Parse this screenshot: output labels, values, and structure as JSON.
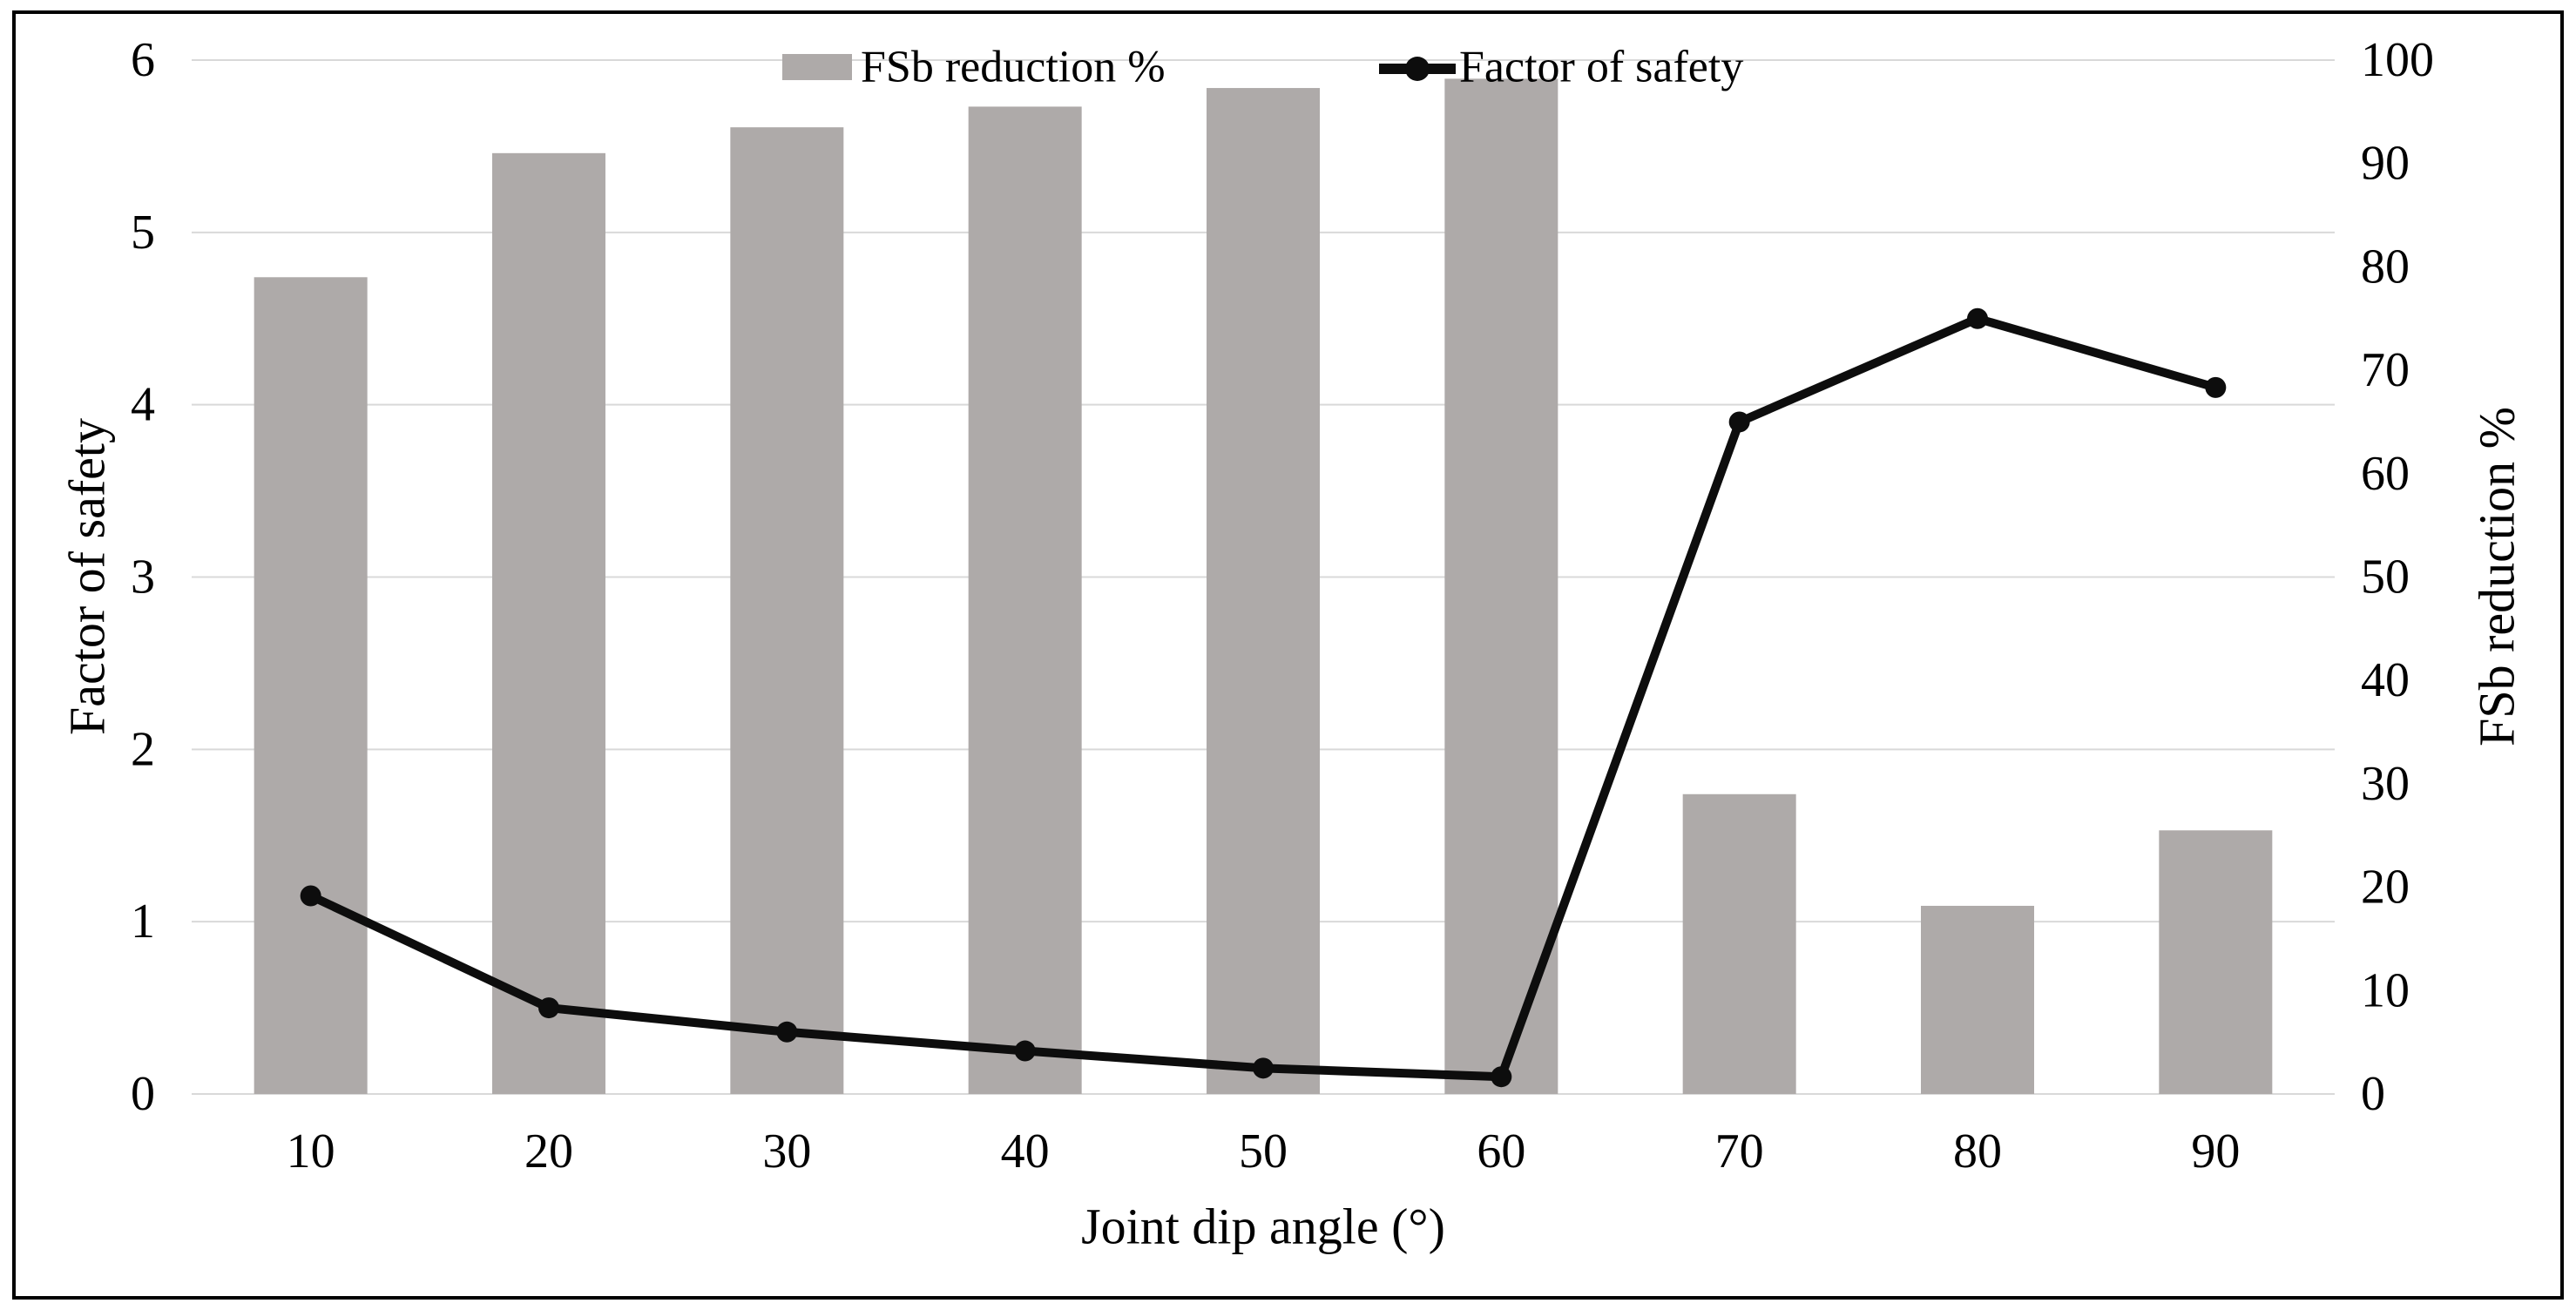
{
  "figure": {
    "legend": [
      {
        "label": "FSb reduction %",
        "marker": "bar-swatch"
      },
      {
        "label": "Factor of safety",
        "marker": "line-dot"
      }
    ],
    "colors": {
      "bar": "#aeaaa9",
      "line": "#0d0d0d",
      "gridline": "#d9d9d9",
      "text": "#000000",
      "frame": "#000000",
      "background": "#ffffff"
    }
  },
  "chart_data": {
    "type": "combo",
    "subtype": "bar+line, dual y-axes",
    "categories": [
      10,
      20,
      30,
      40,
      50,
      60,
      70,
      80,
      90
    ],
    "series": [
      {
        "name": "FSb reduction %",
        "type": "bar",
        "axis": "right",
        "values": [
          79,
          91,
          93.5,
          95.5,
          97.3,
          98.2,
          29,
          18.2,
          25.5
        ]
      },
      {
        "name": "Factor of safety",
        "type": "line",
        "axis": "left",
        "values": [
          1.15,
          0.5,
          0.36,
          0.25,
          0.15,
          0.1,
          3.9,
          4.5,
          4.1
        ]
      }
    ],
    "title": "",
    "xlabel": "Joint dip angle (°)",
    "left_ylabel": "Factor of safety",
    "right_ylabel": "FSb reduction %",
    "left_ylim": [
      0,
      6
    ],
    "left_tick_step": 1,
    "right_ylim": [
      0,
      100
    ],
    "right_tick_step": 10,
    "grid": "horizontal gridlines at left-axis integers",
    "legend_position": "top center, inside plot"
  }
}
